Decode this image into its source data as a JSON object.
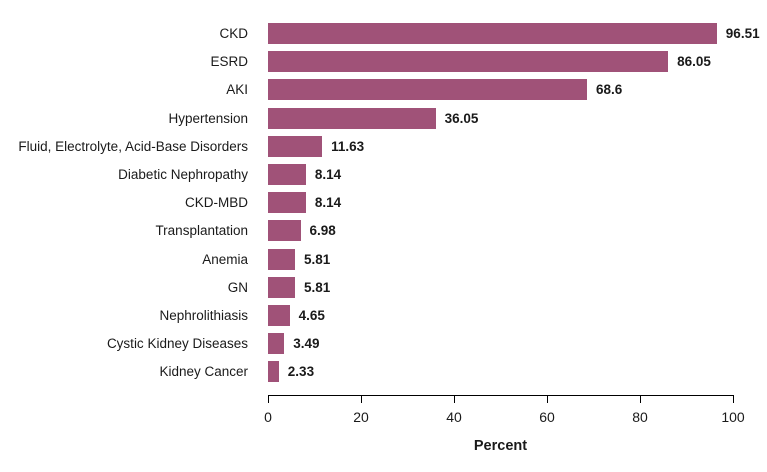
{
  "chart_data": {
    "type": "bar",
    "orientation": "horizontal",
    "title": "",
    "xlabel": "Percent",
    "ylabel": "",
    "xlim": [
      0,
      100
    ],
    "x_ticks": [
      0,
      20,
      40,
      60,
      80,
      100
    ],
    "grid": false,
    "legend": false,
    "bar_color": "#a05278",
    "axis_color": "#000000",
    "text_color": "#1a1a1a",
    "categories": [
      "CKD",
      "ESRD",
      "AKI",
      "Hypertension",
      "Fluid, Electrolyte, Acid-Base Disorders",
      "Diabetic Nephropathy",
      "CKD-MBD",
      "Transplantation",
      "Anemia",
      "GN",
      "Nephrolithiasis",
      "Cystic Kidney Diseases",
      "Kidney Cancer"
    ],
    "values": [
      96.51,
      86.05,
      68.6,
      36.05,
      11.63,
      8.14,
      8.14,
      6.98,
      5.81,
      5.81,
      4.65,
      3.49,
      2.33
    ],
    "value_labels": [
      "96.51",
      "86.05",
      "68.6",
      "36.05",
      "11.63",
      "8.14",
      "8.14",
      "6.98",
      "5.81",
      "5.81",
      "4.65",
      "3.49",
      "2.33"
    ]
  }
}
